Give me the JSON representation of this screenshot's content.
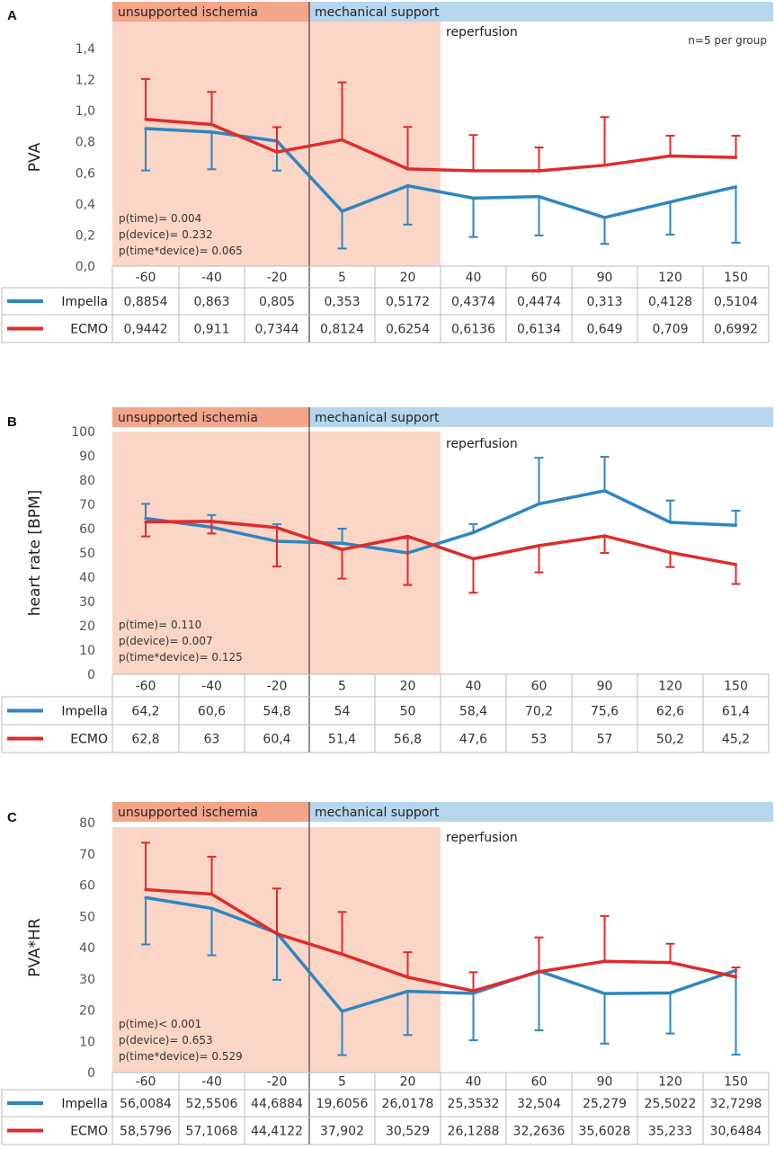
{
  "chart_data": [
    {
      "type": "line",
      "panel": "A",
      "ylabel": "PVA",
      "ylim": [
        0,
        1.4
      ],
      "ytick_step": 0.2,
      "ytick_decimals": 1,
      "ytick_labels": [
        "0,0",
        "0,2",
        "0,4",
        "0,6",
        "0,8",
        "1,0",
        "1,2",
        "1,4"
      ],
      "categories": [
        "-60",
        "-40",
        "-20",
        "5",
        "20",
        "40",
        "60",
        "90",
        "120",
        "150"
      ],
      "band_labels": {
        "ischemia": "unsupported ischemia",
        "support": "mechanical support"
      },
      "reperfusion_label": "reperfusion",
      "note": "n=5 per group",
      "pvalues": [
        "p(time)= 0.004",
        "p(device)= 0.232",
        "p(time*device)= 0.065"
      ],
      "series": [
        {
          "name": "Impella",
          "color": "#2e86c1",
          "values": [
            0.8854,
            0.863,
            0.805,
            0.353,
            0.5172,
            0.4374,
            0.4474,
            0.313,
            0.4128,
            0.5104
          ],
          "error": [
            0.27,
            0.24,
            0.19,
            0.24,
            0.25,
            0.25,
            0.25,
            0.17,
            0.21,
            0.36
          ],
          "error_dir": "down",
          "labels": [
            "0,8854",
            "0,863",
            "0,805",
            "0,353",
            "0,5172",
            "0,4374",
            "0,4474",
            "0,313",
            "0,4128",
            "0,5104"
          ]
        },
        {
          "name": "ECMO",
          "color": "#e02b2b",
          "values": [
            0.9442,
            0.911,
            0.7344,
            0.8124,
            0.6254,
            0.6136,
            0.6134,
            0.649,
            0.709,
            0.6992
          ],
          "error": [
            0.26,
            0.21,
            0.16,
            0.37,
            0.27,
            0.23,
            0.15,
            0.31,
            0.13,
            0.14
          ],
          "error_dir": "up",
          "labels": [
            "0,9442",
            "0,911",
            "0,7344",
            "0,8124",
            "0,6254",
            "0,6136",
            "0,6134",
            "0,649",
            "0,709",
            "0,6992"
          ]
        }
      ]
    },
    {
      "type": "line",
      "panel": "B",
      "ylabel": "heart rate [BPM]",
      "ylim": [
        0,
        100
      ],
      "ytick_step": 10,
      "ytick_decimals": 0,
      "ytick_labels": [
        "0",
        "10",
        "20",
        "30",
        "40",
        "50",
        "60",
        "70",
        "80",
        "90",
        "100"
      ],
      "categories": [
        "-60",
        "-40",
        "-20",
        "5",
        "20",
        "40",
        "60",
        "90",
        "120",
        "150"
      ],
      "band_labels": {
        "ischemia": "unsupported ischemia",
        "support": "mechanical support"
      },
      "reperfusion_label": "reperfusion",
      "note": "",
      "pvalues": [
        "p(time)= 0.110",
        "p(device)= 0.007",
        "p(time*device)= 0.125"
      ],
      "series": [
        {
          "name": "Impella",
          "color": "#2e86c1",
          "values": [
            64.2,
            60.6,
            54.8,
            54,
            50,
            58.4,
            70.2,
            75.6,
            62.6,
            61.4
          ],
          "error": [
            6,
            5,
            7,
            6,
            6,
            3.5,
            19,
            14,
            9,
            6
          ],
          "error_dir": "up",
          "labels": [
            "64,2",
            "60,6",
            "54,8",
            "54",
            "50",
            "58,4",
            "70,2",
            "75,6",
            "62,6",
            "61,4"
          ]
        },
        {
          "name": "ECMO",
          "color": "#e02b2b",
          "values": [
            62.8,
            63,
            60.4,
            51.4,
            56.8,
            47.6,
            53,
            57,
            50.2,
            45.2
          ],
          "error": [
            6,
            5,
            16,
            12,
            20,
            14,
            11,
            7,
            6,
            8
          ],
          "error_dir": "down",
          "labels": [
            "62,8",
            "63",
            "60,4",
            "51,4",
            "56,8",
            "47,6",
            "53",
            "57",
            "50,2",
            "45,2"
          ]
        }
      ]
    },
    {
      "type": "line",
      "panel": "C",
      "ylabel": "PVA*HR",
      "ylim": [
        0,
        80
      ],
      "ytick_step": 10,
      "ytick_decimals": 0,
      "ytick_labels": [
        "0",
        "10",
        "20",
        "30",
        "40",
        "50",
        "60",
        "70",
        "80"
      ],
      "categories": [
        "-60",
        "-40",
        "-20",
        "5",
        "20",
        "40",
        "60",
        "90",
        "120",
        "150"
      ],
      "band_labels": {
        "ischemia": "unsupported ischemia",
        "support": "mechanical support"
      },
      "reperfusion_label": "reperfusion",
      "note": "",
      "pvalues": [
        "p(time)< 0.001",
        "p(device)= 0.653",
        "p(time*device)= 0.529"
      ],
      "series": [
        {
          "name": "Impella",
          "color": "#2e86c1",
          "values": [
            56.0084,
            52.5506,
            44.6884,
            19.6056,
            26.0178,
            25.3532,
            32.504,
            25.279,
            25.5022,
            32.7298
          ],
          "error": [
            15,
            15,
            15,
            14,
            14,
            15,
            19,
            16,
            13,
            27
          ],
          "error_dir": "down",
          "labels": [
            "56,0084",
            "52,5506",
            "44,6884",
            "19,6056",
            "26,0178",
            "25,3532",
            "32,504",
            "25,279",
            "25,5022",
            "32,7298"
          ]
        },
        {
          "name": "ECMO",
          "color": "#e02b2b",
          "values": [
            58.5796,
            57.1068,
            44.4122,
            37.902,
            30.529,
            26.1288,
            32.2636,
            35.6028,
            35.233,
            30.6484
          ],
          "error": [
            15,
            12,
            14.5,
            13.5,
            8,
            6,
            11,
            14.5,
            6,
            3
          ],
          "error_dir": "up",
          "labels": [
            "58,5796",
            "57,1068",
            "44,4122",
            "37,902",
            "30,529",
            "26,1288",
            "32,2636",
            "35,6028",
            "35,233",
            "30,6484"
          ]
        }
      ]
    }
  ]
}
